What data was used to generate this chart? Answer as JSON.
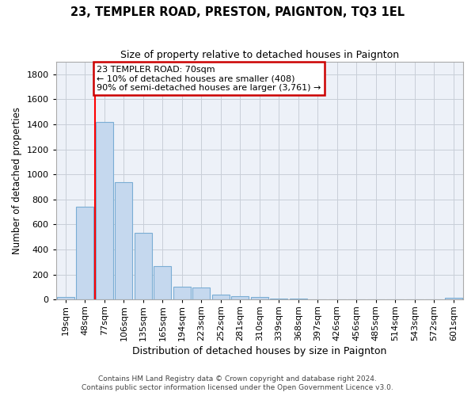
{
  "title": "23, TEMPLER ROAD, PRESTON, PAIGNTON, TQ3 1EL",
  "subtitle": "Size of property relative to detached houses in Paignton",
  "xlabel": "Distribution of detached houses by size in Paignton",
  "ylabel": "Number of detached properties",
  "footer_line1": "Contains HM Land Registry data © Crown copyright and database right 2024.",
  "footer_line2": "Contains public sector information licensed under the Open Government Licence v3.0.",
  "bar_labels": [
    "19sqm",
    "48sqm",
    "77sqm",
    "106sqm",
    "135sqm",
    "165sqm",
    "194sqm",
    "223sqm",
    "252sqm",
    "281sqm",
    "310sqm",
    "339sqm",
    "368sqm",
    "397sqm",
    "426sqm",
    "456sqm",
    "485sqm",
    "514sqm",
    "543sqm",
    "572sqm",
    "601sqm"
  ],
  "bar_values": [
    22,
    740,
    1420,
    940,
    530,
    265,
    105,
    95,
    40,
    28,
    18,
    10,
    5,
    3,
    2,
    1,
    1,
    1,
    0,
    0,
    14
  ],
  "bar_color": "#c5d8ee",
  "bar_edge_color": "#7aadd4",
  "bg_color": "#edf1f8",
  "grid_color": "#c8ced8",
  "red_line_x": 1.5,
  "annotation_text": "23 TEMPLER ROAD: 70sqm\n← 10% of detached houses are smaller (408)\n90% of semi-detached houses are larger (3,761) →",
  "annotation_box_edgecolor": "#cc0000",
  "ylim": [
    0,
    1900
  ],
  "yticks": [
    0,
    200,
    400,
    600,
    800,
    1000,
    1200,
    1400,
    1600,
    1800
  ]
}
